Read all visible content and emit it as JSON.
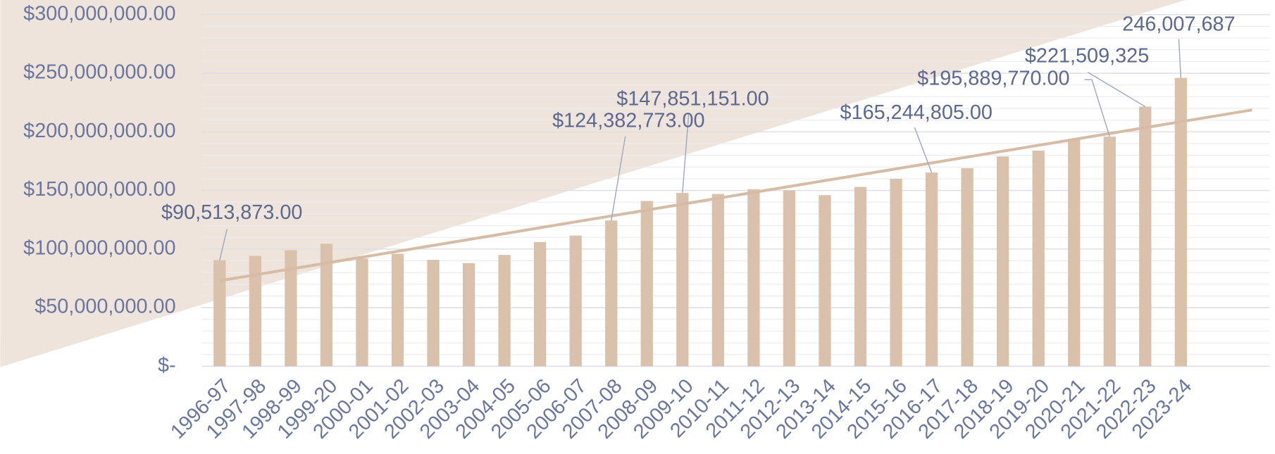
{
  "chart_data": {
    "type": "bar",
    "categories": [
      "1996-97",
      "1997-98",
      "1998-99",
      "1999-20",
      "2000-01",
      "2001-02",
      "2002-03",
      "2003-04",
      "2004-05",
      "2005-06",
      "2006-07",
      "2007-08",
      "2008-09",
      "2009-10",
      "2010-11",
      "2011-12",
      "2012-13",
      "2013-14",
      "2014-15",
      "2015-16",
      "2016-17",
      "2017-18",
      "2018-19",
      "2019-20",
      "2020-21",
      "2021-22",
      "2022-23",
      "2023-24",
      null,
      null
    ],
    "values": [
      90513873,
      94200000,
      99000000,
      104600000,
      92000000,
      96000000,
      90800000,
      88000000,
      95000000,
      106000000,
      111500000,
      124382773,
      141000000,
      147851151,
      147000000,
      151000000,
      150000000,
      146000000,
      153000000,
      160000000,
      165244805,
      169000000,
      179000000,
      184000000,
      194000000,
      195889770,
      221509325,
      246007687,
      null,
      null
    ],
    "value_labels": [
      "$90,513,873.00",
      null,
      null,
      null,
      null,
      null,
      null,
      null,
      null,
      null,
      null,
      "$124,382,773.00",
      null,
      "$147,851,151.00",
      null,
      null,
      null,
      null,
      null,
      null,
      "$165,244,805.00",
      null,
      null,
      null,
      null,
      "$195,889,770.00",
      "$221,509,325",
      "246,007,687",
      null,
      null
    ],
    "color": "#d9c1ab",
    "trendline": {
      "type": "linear",
      "color": "#d6bca4"
    },
    "ylim": [
      0,
      300000000
    ],
    "yticks": [
      {
        "value": 0,
        "label": "$-"
      },
      {
        "value": 50000000,
        "label": "$50,000,000.00"
      },
      {
        "value": 100000000,
        "label": "$100,000,000.00"
      },
      {
        "value": 150000000,
        "label": "$150,000,000.00"
      },
      {
        "value": 200000000,
        "label": "$200,000,000.00"
      },
      {
        "value": 250000000,
        "label": "$250,000,000.00"
      },
      {
        "value": 300000000,
        "label": "$300,000,000.00"
      }
    ],
    "minor_grid_step": 10000000,
    "grid": true
  }
}
